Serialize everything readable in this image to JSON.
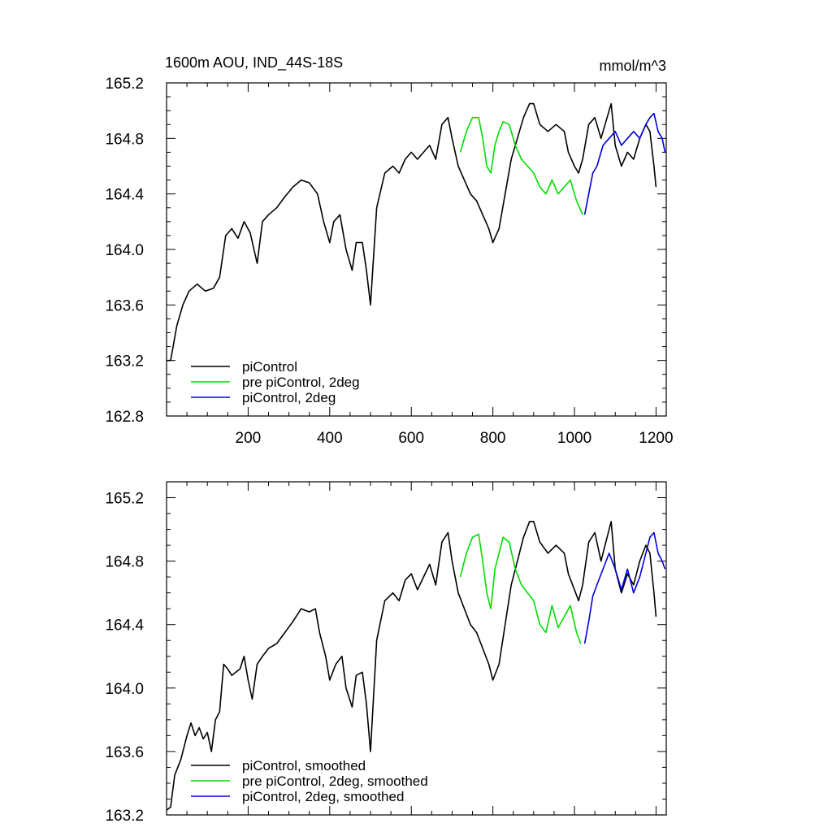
{
  "chart_data": [
    {
      "type": "line",
      "title": "1600m AOU, IND_44S-18S",
      "units": "mmol/m^3",
      "xlabel": "",
      "ylabel": "",
      "xlim": [
        0,
        1225
      ],
      "ylim": [
        162.8,
        165.2
      ],
      "xticks": [
        200,
        400,
        600,
        800,
        1000,
        1200
      ],
      "xtick_labels": [
        "200",
        "400",
        "600",
        "800",
        "1000",
        "1200"
      ],
      "yticks": [
        162.8,
        163.2,
        163.6,
        164.0,
        164.4,
        164.8,
        165.2
      ],
      "ytick_labels": [
        "162.8",
        "163.2",
        "163.6",
        "164.0",
        "164.4",
        "164.8",
        "165.2"
      ],
      "grid": false,
      "legend_position": "bottom-left",
      "series": [
        {
          "name": "piControl",
          "color": "#000000",
          "x": [
            0,
            10,
            25,
            40,
            55,
            75,
            95,
            115,
            130,
            145,
            160,
            175,
            190,
            205,
            222,
            235,
            250,
            270,
            290,
            310,
            330,
            350,
            370,
            385,
            400,
            410,
            425,
            440,
            455,
            465,
            480,
            490,
            500,
            515,
            535,
            555,
            570,
            585,
            600,
            615,
            630,
            645,
            660,
            675,
            690,
            700,
            715,
            730,
            745,
            760,
            775,
            790,
            800,
            815,
            830,
            845,
            860,
            875,
            890,
            900,
            915,
            935,
            955,
            975,
            985,
            1000,
            1010,
            1020,
            1035,
            1050,
            1065,
            1080,
            1090,
            1100,
            1115,
            1130,
            1145,
            1160,
            1175,
            1185,
            1195,
            1200
          ],
          "y": [
            163.2,
            163.2,
            163.45,
            163.6,
            163.7,
            163.75,
            163.7,
            163.72,
            163.8,
            164.1,
            164.15,
            164.08,
            164.2,
            164.12,
            163.9,
            164.2,
            164.25,
            164.3,
            164.38,
            164.45,
            164.5,
            164.48,
            164.4,
            164.2,
            164.05,
            164.2,
            164.25,
            164.0,
            163.85,
            164.05,
            164.05,
            163.85,
            163.6,
            164.3,
            164.55,
            164.6,
            164.55,
            164.65,
            164.7,
            164.65,
            164.7,
            164.75,
            164.65,
            164.9,
            164.95,
            164.8,
            164.6,
            164.5,
            164.4,
            164.35,
            164.25,
            164.15,
            164.05,
            164.15,
            164.4,
            164.65,
            164.8,
            164.95,
            165.05,
            165.05,
            164.9,
            164.85,
            164.9,
            164.85,
            164.7,
            164.6,
            164.55,
            164.65,
            164.9,
            164.95,
            164.8,
            164.95,
            165.05,
            164.75,
            164.6,
            164.7,
            164.65,
            164.8,
            164.9,
            164.85,
            164.6,
            164.45
          ]
        },
        {
          "name": "pre piControl, 2deg",
          "color": "#00dd00",
          "x": [
            720,
            735,
            750,
            765,
            775,
            785,
            795,
            805,
            815,
            825,
            840,
            855,
            870,
            885,
            900,
            915,
            930,
            945,
            960,
            975,
            990,
            1005,
            1020
          ],
          "y": [
            164.7,
            164.85,
            164.95,
            164.95,
            164.8,
            164.6,
            164.55,
            164.75,
            164.85,
            164.92,
            164.9,
            164.75,
            164.65,
            164.6,
            164.55,
            164.45,
            164.4,
            164.5,
            164.4,
            164.45,
            164.5,
            164.35,
            164.25
          ]
        },
        {
          "name": "piControl, 2deg",
          "color": "#0000e0",
          "x": [
            1025,
            1035,
            1045,
            1055,
            1070,
            1085,
            1100,
            1115,
            1130,
            1145,
            1160,
            1175,
            1185,
            1195,
            1205,
            1215,
            1222
          ],
          "y": [
            164.25,
            164.4,
            164.55,
            164.6,
            164.75,
            164.8,
            164.85,
            164.75,
            164.8,
            164.85,
            164.8,
            164.9,
            164.95,
            164.98,
            164.85,
            164.8,
            164.7
          ]
        }
      ]
    },
    {
      "type": "line",
      "title": "",
      "xlabel": "",
      "ylabel": "",
      "xlim": [
        0,
        1225
      ],
      "ylim": [
        163.2,
        165.3
      ],
      "xticks": [
        200,
        400,
        600,
        800,
        1000,
        1200
      ],
      "xtick_labels": [],
      "yticks": [
        163.2,
        163.6,
        164.0,
        164.4,
        164.8,
        165.2
      ],
      "ytick_labels": [
        "163.2",
        "163.6",
        "164.0",
        "164.4",
        "164.8",
        "165.2"
      ],
      "grid": false,
      "legend_position": "bottom-left",
      "series": [
        {
          "name": "piControl, smoothed",
          "color": "#000000",
          "x": [
            0,
            10,
            20,
            35,
            50,
            60,
            70,
            80,
            90,
            100,
            110,
            120,
            130,
            140,
            150,
            160,
            170,
            180,
            190,
            200,
            210,
            222,
            235,
            250,
            270,
            290,
            310,
            330,
            350,
            365,
            375,
            390,
            400,
            415,
            430,
            440,
            455,
            465,
            480,
            490,
            500,
            515,
            535,
            555,
            570,
            585,
            600,
            615,
            630,
            645,
            660,
            675,
            690,
            700,
            715,
            730,
            745,
            760,
            775,
            790,
            800,
            815,
            830,
            845,
            860,
            875,
            890,
            900,
            915,
            935,
            955,
            975,
            985,
            1000,
            1010,
            1020,
            1035,
            1050,
            1065,
            1080,
            1090,
            1100,
            1115,
            1130,
            1145,
            1160,
            1175,
            1185,
            1195,
            1200
          ],
          "y": [
            163.23,
            163.25,
            163.45,
            163.55,
            163.7,
            163.78,
            163.7,
            163.75,
            163.68,
            163.72,
            163.6,
            163.8,
            163.85,
            164.15,
            164.12,
            164.08,
            164.1,
            164.12,
            164.2,
            164.05,
            163.93,
            164.15,
            164.2,
            164.25,
            164.28,
            164.35,
            164.42,
            164.5,
            164.48,
            164.5,
            164.35,
            164.2,
            164.05,
            164.15,
            164.2,
            164.0,
            163.88,
            164.08,
            164.1,
            163.9,
            163.6,
            164.3,
            164.55,
            164.6,
            164.55,
            164.68,
            164.72,
            164.62,
            164.7,
            164.78,
            164.65,
            164.92,
            164.98,
            164.8,
            164.6,
            164.5,
            164.4,
            164.35,
            164.25,
            164.15,
            164.05,
            164.15,
            164.4,
            164.65,
            164.8,
            164.95,
            165.05,
            165.05,
            164.92,
            164.85,
            164.9,
            164.85,
            164.72,
            164.62,
            164.55,
            164.65,
            164.92,
            164.98,
            164.8,
            164.95,
            165.05,
            164.75,
            164.6,
            164.72,
            164.65,
            164.8,
            164.9,
            164.85,
            164.6,
            164.45
          ]
        },
        {
          "name": "pre piControl, 2deg, smoothed",
          "color": "#00dd00",
          "x": [
            720,
            735,
            750,
            765,
            775,
            785,
            795,
            805,
            815,
            825,
            840,
            855,
            870,
            885,
            900,
            915,
            930,
            945,
            960,
            975,
            990,
            1005,
            1015
          ],
          "y": [
            164.7,
            164.85,
            164.95,
            164.97,
            164.8,
            164.6,
            164.5,
            164.75,
            164.85,
            164.95,
            164.92,
            164.75,
            164.65,
            164.6,
            164.55,
            164.4,
            164.35,
            164.52,
            164.38,
            164.45,
            164.52,
            164.35,
            164.28
          ]
        },
        {
          "name": "piControl, 2deg, smoothed",
          "color": "#0000e0",
          "x": [
            1025,
            1035,
            1045,
            1055,
            1070,
            1085,
            1100,
            1115,
            1130,
            1145,
            1160,
            1175,
            1185,
            1195,
            1205,
            1215,
            1222
          ],
          "y": [
            164.28,
            164.42,
            164.58,
            164.65,
            164.75,
            164.85,
            164.75,
            164.62,
            164.75,
            164.6,
            164.7,
            164.85,
            164.95,
            164.98,
            164.85,
            164.8,
            164.75
          ]
        }
      ]
    }
  ]
}
